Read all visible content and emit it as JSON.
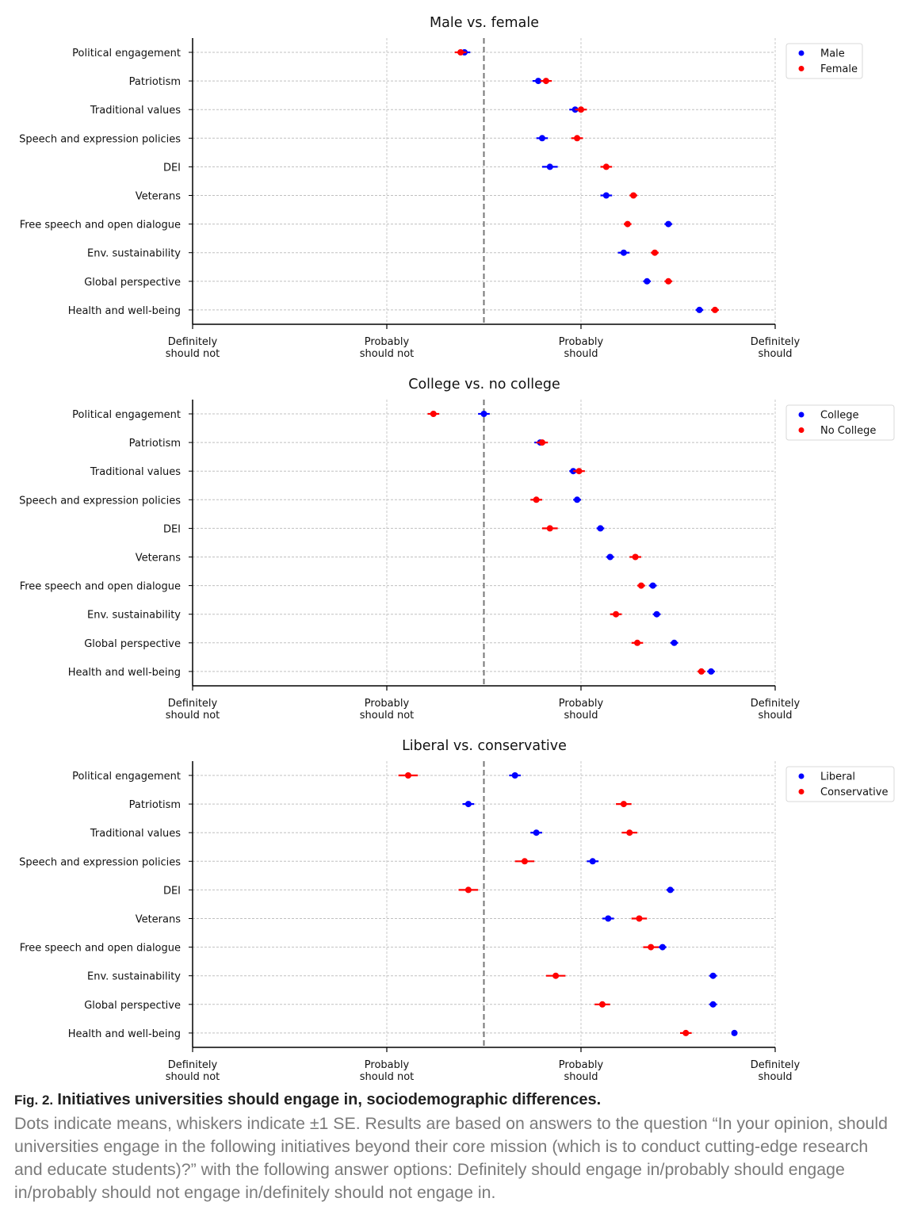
{
  "chart_data": {
    "type": "scatter",
    "xlim": [
      1,
      4
    ],
    "midline": 2.5,
    "grid": true,
    "legend_placement": "top-right",
    "x_tick_labels": [
      [
        "Definitely",
        "should not"
      ],
      [
        "Probably",
        "should not"
      ],
      [
        "Probably",
        "should"
      ],
      [
        "Definitely",
        "should"
      ]
    ],
    "categories": [
      "Political engagement",
      "Patriotism",
      "Traditional values",
      "Speech and expression policies",
      "DEI",
      "Veterans",
      "Free speech and open dialogue",
      "Env. sustainability",
      "Global perspective",
      "Health and well-being"
    ],
    "panels": [
      {
        "title": "Male vs. female",
        "series": [
          {
            "name": "Male",
            "color": "#0000ff",
            "means": [
              2.4,
              2.78,
              2.97,
              2.8,
              2.84,
              3.13,
              3.45,
              3.22,
              3.34,
              3.61
            ],
            "se": [
              0.03,
              0.03,
              0.03,
              0.03,
              0.04,
              0.03,
              0.02,
              0.03,
              0.02,
              0.02
            ]
          },
          {
            "name": "Female",
            "color": "#ff0000",
            "means": [
              2.38,
              2.82,
              3.0,
              2.98,
              3.13,
              3.27,
              3.24,
              3.38,
              3.45,
              3.69
            ],
            "se": [
              0.03,
              0.03,
              0.03,
              0.03,
              0.03,
              0.02,
              0.02,
              0.02,
              0.02,
              0.02
            ]
          }
        ]
      },
      {
        "title": "College vs. no college",
        "series": [
          {
            "name": "College",
            "color": "#0000ff",
            "means": [
              2.5,
              2.79,
              2.96,
              2.98,
              3.1,
              3.15,
              3.37,
              3.39,
              3.48,
              3.67
            ],
            "se": [
              0.03,
              0.03,
              0.02,
              0.02,
              0.02,
              0.02,
              0.02,
              0.02,
              0.02,
              0.02
            ]
          },
          {
            "name": "No College",
            "color": "#ff0000",
            "means": [
              2.24,
              2.8,
              2.99,
              2.77,
              2.84,
              3.28,
              3.31,
              3.18,
              3.29,
              3.62
            ],
            "se": [
              0.03,
              0.03,
              0.03,
              0.03,
              0.04,
              0.03,
              0.02,
              0.03,
              0.03,
              0.02
            ]
          }
        ]
      },
      {
        "title": "Liberal vs. conservative",
        "series": [
          {
            "name": "Liberal",
            "color": "#0000ff",
            "means": [
              2.66,
              2.42,
              2.77,
              3.06,
              3.46,
              3.14,
              3.42,
              3.68,
              3.68,
              3.79
            ],
            "se": [
              0.03,
              0.03,
              0.03,
              0.03,
              0.02,
              0.03,
              0.02,
              0.02,
              0.02,
              0.01
            ]
          },
          {
            "name": "Conservative",
            "color": "#ff0000",
            "means": [
              2.11,
              3.22,
              3.25,
              2.71,
              2.42,
              3.3,
              3.36,
              2.87,
              3.11,
              3.54
            ],
            "se": [
              0.05,
              0.04,
              0.04,
              0.05,
              0.05,
              0.04,
              0.04,
              0.05,
              0.04,
              0.03
            ]
          }
        ]
      }
    ]
  },
  "caption": {
    "label": "Fig. 2.",
    "title": "Initiatives universities should engage in, sociodemographic differences.",
    "body": "Dots indicate means, whiskers indicate ±1 SE. Results are based on answers to the question “In your opinion, should universities engage in the following initiatives beyond their core mission (which is to conduct cutting-edge research and educate students)?” with the following answer options: Definitely should engage in/probably should engage in/probably should not engage in/definitely should not engage in."
  }
}
